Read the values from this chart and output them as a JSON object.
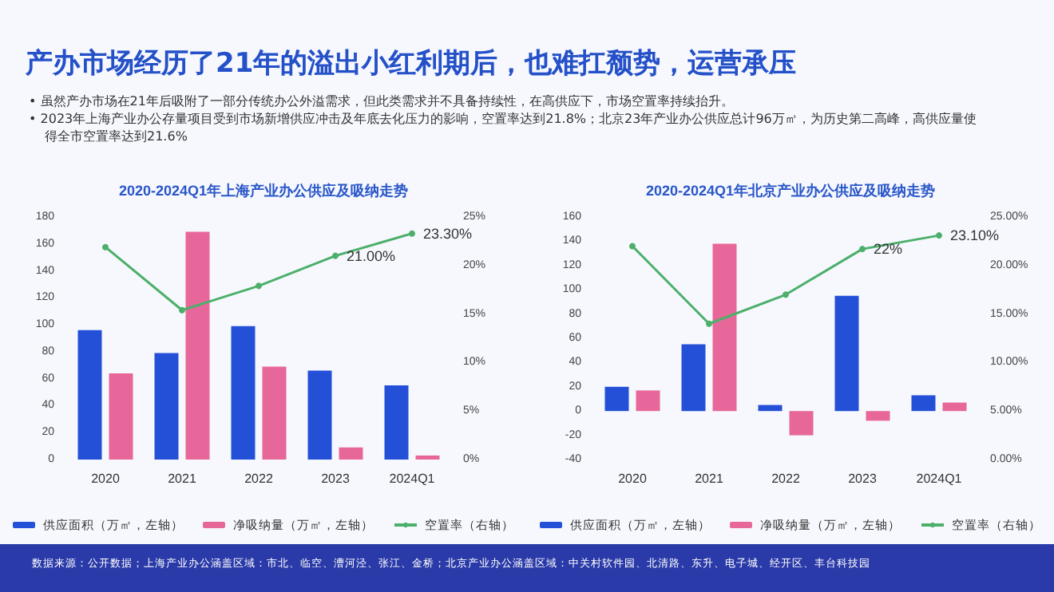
{
  "chart_data": [
    {
      "type": "other",
      "title": "产办市场经历了21年的溢出小红利期后，也难扛颓势，运营承压",
      "annotations": [
        "• 虽然产办市场在21年后吸附了一部分传统办公外溢需求，但此类需求并不具备持续性，在高供应下，市场空置率持续抬升。",
        "• 2023年上海产业办公存量项目受到市场新增供应冲击及年底去化压力的影响，空置率达到21.8%；北京23年产业办公供应总计96万㎡，为历史第二高峰，高供应量使得全市空置率达到21.6%",
        "数据来源：公开数据；上海产业办公涵盖区域：市北、临空、漕河泾、张江、金桥；北京产业办公涵盖区域：中关村软件园、北清路、东升、电子城、经开区、丰台科技园"
      ]
    },
    {
      "type": "bar",
      "title": "2020-2024Q1年上海产业办公供应及吸纳走势",
      "categories": [
        "2020",
        "2021",
        "2022",
        "2023",
        "2024Q1"
      ],
      "series": [
        {
          "name": "供应面积（万㎡，左轴）",
          "color": "#2450d8",
          "values": [
            96,
            79,
            99,
            66,
            55
          ]
        },
        {
          "name": "净吸纳量（万㎡，左轴）",
          "color": "#e8679a",
          "values": [
            64,
            169,
            69,
            9,
            3
          ]
        },
        {
          "name": "空置率（右轴）",
          "type": "line",
          "axis": "y2",
          "color": "#4caf6a",
          "marker": "circle",
          "values": [
            21.9,
            15.4,
            17.9,
            21.0,
            23.3
          ],
          "value_labels": [
            null,
            null,
            null,
            "21.00%",
            "23.30%"
          ]
        }
      ],
      "ylim": [
        0,
        180
      ],
      "yticks": [
        0,
        20,
        40,
        60,
        80,
        100,
        120,
        140,
        160,
        180
      ],
      "y2lim": [
        0,
        25
      ],
      "y2ticks": [
        {
          "value": 0,
          "label": "0%"
        },
        {
          "value": 5,
          "label": "5%"
        },
        {
          "value": 10,
          "label": "10%"
        },
        {
          "value": 15,
          "label": "15%"
        },
        {
          "value": 20,
          "label": "20%"
        },
        {
          "value": 25,
          "label": "25%"
        }
      ],
      "legend": "bottom",
      "grid": false
    },
    {
      "type": "bar",
      "title": "2020-2024Q1年北京产业办公供应及吸纳走势",
      "categories": [
        "2020",
        "2021",
        "2022",
        "2023",
        "2024Q1"
      ],
      "series": [
        {
          "name": "供应面积（万㎡，左轴）",
          "color": "#2450d8",
          "values": [
            20,
            55,
            5,
            95,
            13
          ]
        },
        {
          "name": "净吸纳量（万㎡，左轴）",
          "color": "#e8679a",
          "values": [
            17,
            138,
            -20,
            -8,
            7
          ]
        },
        {
          "name": "空置率（右轴）",
          "type": "line",
          "axis": "y2",
          "color": "#4caf6a",
          "marker": "circle",
          "values": [
            22,
            14,
            17,
            21.7,
            23.1
          ],
          "value_labels": [
            null,
            null,
            null,
            "22%",
            "23.10%"
          ]
        }
      ],
      "ylim": [
        -40,
        160
      ],
      "yticks": [
        -40,
        -20,
        0,
        20,
        40,
        60,
        80,
        100,
        120,
        140,
        160
      ],
      "y2lim": [
        0,
        25
      ],
      "y2ticks": [
        {
          "value": 0,
          "label": "0.00%"
        },
        {
          "value": 5,
          "label": "5.00%"
        },
        {
          "value": 10,
          "label": "10.00%"
        },
        {
          "value": 15,
          "label": "15.00%"
        },
        {
          "value": 20,
          "label": "20.00%"
        },
        {
          "value": 25,
          "label": "25.00%"
        }
      ],
      "legend": "bottom",
      "grid": false
    }
  ]
}
